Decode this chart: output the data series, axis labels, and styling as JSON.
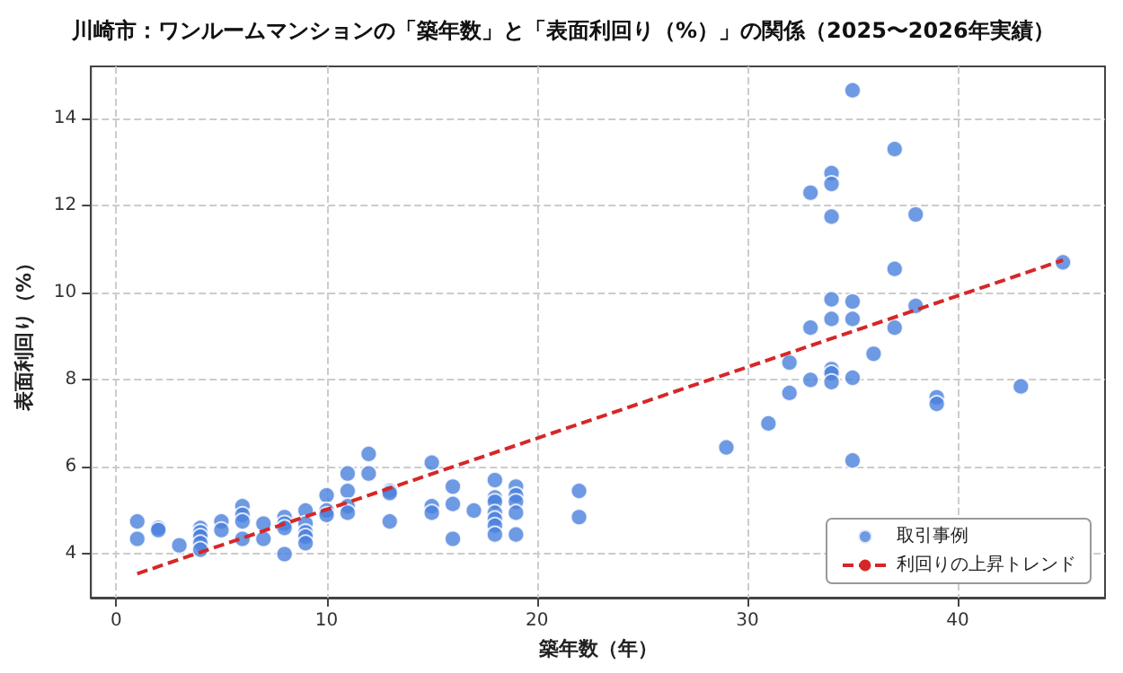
{
  "chart_data": {
    "type": "scatter",
    "title": "川崎市：ワンルームマンションの「築年数」と「表面利回り（%）」の関係（2025〜2026年実績）",
    "xlabel": "築年数（年）",
    "ylabel": "表面利回り（%）",
    "xlim": [
      -1.2,
      47
    ],
    "xticks": [
      0,
      10,
      20,
      30,
      40
    ],
    "ylim": [
      3,
      15.2
    ],
    "yticks": [
      4,
      6,
      8,
      10,
      12,
      14
    ],
    "grid": true,
    "legend": "bottom right",
    "marker": "circle",
    "series": [
      {
        "name": "取引事例",
        "color": "#4a7fdc",
        "x": [
          1,
          1,
          2,
          2,
          3,
          4,
          4,
          4,
          4,
          4,
          5,
          5,
          6,
          6,
          6,
          6,
          7,
          7,
          8,
          8,
          8,
          8,
          9,
          9,
          9,
          9,
          9,
          10,
          10,
          10,
          11,
          11,
          11,
          11,
          12,
          12,
          13,
          13,
          13,
          15,
          15,
          15,
          16,
          16,
          16,
          17,
          18,
          18,
          18,
          18,
          18,
          18,
          18,
          19,
          19,
          19,
          19,
          19,
          22,
          22,
          29,
          31,
          32,
          32,
          33,
          33,
          33,
          34,
          34,
          34,
          34,
          34,
          34,
          34,
          34,
          35,
          35,
          35,
          35,
          35,
          36,
          37,
          37,
          37,
          38,
          38,
          39,
          39,
          43,
          45
        ],
        "values": [
          4.75,
          4.35,
          4.6,
          4.55,
          4.2,
          4.6,
          4.5,
          4.4,
          4.25,
          4.1,
          4.75,
          4.55,
          5.1,
          4.9,
          4.75,
          4.35,
          4.7,
          4.35,
          4.85,
          4.7,
          4.6,
          4.0,
          5.0,
          4.7,
          4.5,
          4.4,
          4.25,
          5.35,
          5.0,
          4.9,
          5.85,
          5.45,
          5.1,
          4.95,
          6.3,
          5.85,
          5.45,
          5.4,
          4.75,
          6.1,
          5.1,
          4.95,
          5.55,
          5.15,
          4.35,
          5.0,
          5.7,
          5.3,
          5.2,
          4.95,
          4.8,
          4.65,
          4.45,
          5.55,
          5.35,
          5.2,
          4.95,
          4.45,
          5.45,
          4.85,
          6.45,
          7.0,
          8.4,
          7.7,
          12.3,
          9.2,
          8.0,
          12.75,
          12.5,
          11.75,
          9.85,
          9.4,
          8.25,
          8.15,
          7.95,
          14.65,
          9.8,
          9.4,
          8.05,
          6.15,
          8.6,
          13.3,
          10.55,
          9.2,
          11.8,
          9.7,
          7.6,
          7.45,
          7.85,
          10.7
        ]
      },
      {
        "name": "利回りの上昇トレンド",
        "type": "line",
        "color": "#d62728",
        "line_style": "dashed",
        "marker": "none",
        "x": [
          1,
          45
        ],
        "values": [
          3.55,
          10.75
        ]
      }
    ]
  }
}
